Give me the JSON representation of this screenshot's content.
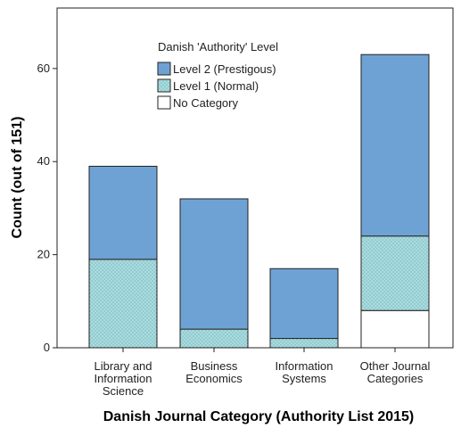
{
  "colors": {
    "level2": "#6fa2d4",
    "level1": "#a8dce0",
    "none": "#ffffff",
    "stroke": "#222222"
  },
  "chart_data": {
    "type": "bar",
    "stacked": true,
    "xlabel": "Danish Journal Category (Authority List 2015)",
    "ylabel": "Count (out of 151)",
    "ylim": [
      0,
      73
    ],
    "yticks": [
      0,
      20,
      40,
      60
    ],
    "categories": [
      [
        "Library and",
        "Information",
        "Science"
      ],
      [
        "Business",
        "Economics"
      ],
      [
        "Information",
        "Systems"
      ],
      [
        "Other Journal",
        "Categories"
      ]
    ],
    "legend": {
      "title": "Danish 'Authority' Level",
      "position": "top-center"
    },
    "series": [
      {
        "name": "No Category",
        "values": [
          0,
          0,
          0,
          8
        ]
      },
      {
        "name": "Level 1 (Normal)",
        "values": [
          19,
          4,
          2,
          16
        ]
      },
      {
        "name": "Level 2 (Prestigous)",
        "values": [
          20,
          28,
          15,
          39
        ]
      }
    ]
  }
}
